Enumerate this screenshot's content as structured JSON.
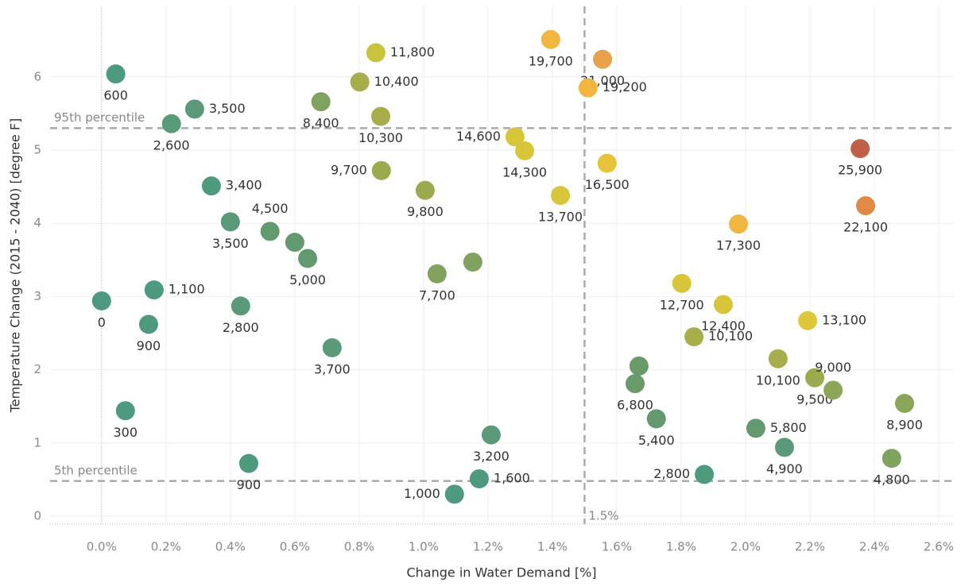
{
  "chart_data": {
    "type": "scatter",
    "x_label": "Change in Water Demand [%]",
    "y_label": "Temperature Change (2015 - 2040) [degree F]",
    "xlim": [
      -0.16,
      2.647
    ],
    "ylim": [
      -0.108,
      6.963
    ],
    "xticks": [
      {
        "value": 0,
        "label": "0.0%"
      },
      {
        "value": 0.2,
        "label": "0.2%"
      },
      {
        "value": 0.4,
        "label": "0.4%"
      },
      {
        "value": 0.6,
        "label": "0.6%"
      },
      {
        "value": 0.8,
        "label": "0.8%"
      },
      {
        "value": 1.0,
        "label": "1.0%"
      },
      {
        "value": 1.2,
        "label": "1.2%"
      },
      {
        "value": 1.4,
        "label": "1.4%"
      },
      {
        "value": 1.6,
        "label": "1.6%"
      },
      {
        "value": 1.8,
        "label": "1.8%"
      },
      {
        "value": 2.0,
        "label": "2.0%"
      },
      {
        "value": 2.2,
        "label": "2.2%"
      },
      {
        "value": 2.4,
        "label": "2.4%"
      },
      {
        "value": 2.6,
        "label": "2.6%"
      }
    ],
    "yticks": [
      0,
      1,
      2,
      3,
      4,
      5,
      6
    ],
    "grid": true,
    "reference_lines": [
      {
        "axis": "y",
        "value": 5.3,
        "label": "95th percentile"
      },
      {
        "axis": "y",
        "value": 0.48,
        "label": "5th percentile"
      },
      {
        "axis": "x",
        "value": 1.5,
        "label": "1.5%"
      }
    ],
    "series": [
      {
        "x": [
          0.044,
          0.217,
          0.289,
          0.341,
          0.4,
          0.523,
          0.6,
          0.64,
          0.0,
          0.163,
          0.146,
          0.432,
          0.716,
          0.074,
          0.457,
          0.681,
          0.852,
          0.802,
          0.867,
          0.869,
          1.005,
          1.042,
          1.153,
          1.21,
          1.173,
          1.096,
          1.284,
          1.314,
          1.425,
          1.395,
          1.556,
          1.511,
          1.57,
          1.978,
          2.356,
          2.373,
          1.802,
          1.931,
          2.193,
          1.84,
          2.101,
          2.215,
          2.272,
          2.494,
          1.669,
          1.657,
          1.723,
          2.032,
          2.121,
          1.872,
          2.454
        ],
        "values": [
          6.04,
          5.36,
          5.56,
          4.51,
          4.02,
          3.89,
          3.74,
          3.52,
          2.94,
          3.09,
          2.62,
          2.87,
          2.3,
          1.44,
          0.72,
          5.66,
          6.33,
          5.93,
          5.46,
          4.72,
          4.45,
          3.31,
          3.47,
          1.11,
          0.51,
          0.3,
          5.18,
          4.99,
          4.38,
          6.51,
          6.24,
          5.85,
          4.82,
          3.99,
          5.02,
          4.24,
          3.18,
          2.89,
          2.67,
          2.45,
          2.15,
          1.89,
          1.72,
          1.54,
          2.05,
          1.81,
          1.33,
          1.2,
          0.94,
          0.57,
          0.79
        ],
        "point_labels": [
          "600",
          "2,600",
          "3,500",
          "3,400",
          "3,500",
          "4,500",
          null,
          "5,000",
          "0",
          "1,100",
          "900",
          "2,800",
          "3,700",
          "300",
          "900",
          "8,400",
          "11,800",
          "10,400",
          "10,300",
          "9,700",
          "9,800",
          "7,700",
          null,
          "3,200",
          "1,600",
          "1,000",
          "14,600",
          "14,300",
          "13,700",
          "19,700",
          "21,000",
          "19,200",
          "16,500",
          "17,300",
          "25,900",
          "22,100",
          "12,700",
          "12,400",
          "13,100",
          "10,100",
          "10,100",
          "9,500",
          "9,000",
          "8,900",
          null,
          "6,800",
          "5,400",
          "5,800",
          "4,900",
          "2,800",
          "4,800"
        ],
        "colors": [
          "#4e9a7f",
          "#5a9a78",
          "#5a9a78",
          "#4e9a7f",
          "#5a9a78",
          "#62996f",
          "#62996f",
          "#62996f",
          "#4e9a7f",
          "#4e9a7f",
          "#4e9a7f",
          "#5a9a78",
          "#5a9a78",
          "#4e9a7f",
          "#4e9a7f",
          "#7fa25e",
          "#c8c43c",
          "#a8ad4c",
          "#a8ad4c",
          "#9aab4e",
          "#9aab4e",
          "#7fa25e",
          "#7fa25e",
          "#5a9a78",
          "#4e9a7f",
          "#4e9a7f",
          "#d8c63a",
          "#d8c63a",
          "#d8c63a",
          "#f0b640",
          "#e8a24a",
          "#f0b640",
          "#e6c43a",
          "#f0b640",
          "#c0604a",
          "#e08a48",
          "#d8c63a",
          "#d8c63a",
          "#dcc83a",
          "#a8ad4c",
          "#a8ad4c",
          "#9aab4e",
          "#8aa656",
          "#8aa656",
          "#6a9a6a",
          "#6a9a6a",
          "#62996f",
          "#62996f",
          "#5a9a78",
          "#4e9a7f",
          "#7fa25e"
        ]
      }
    ]
  }
}
